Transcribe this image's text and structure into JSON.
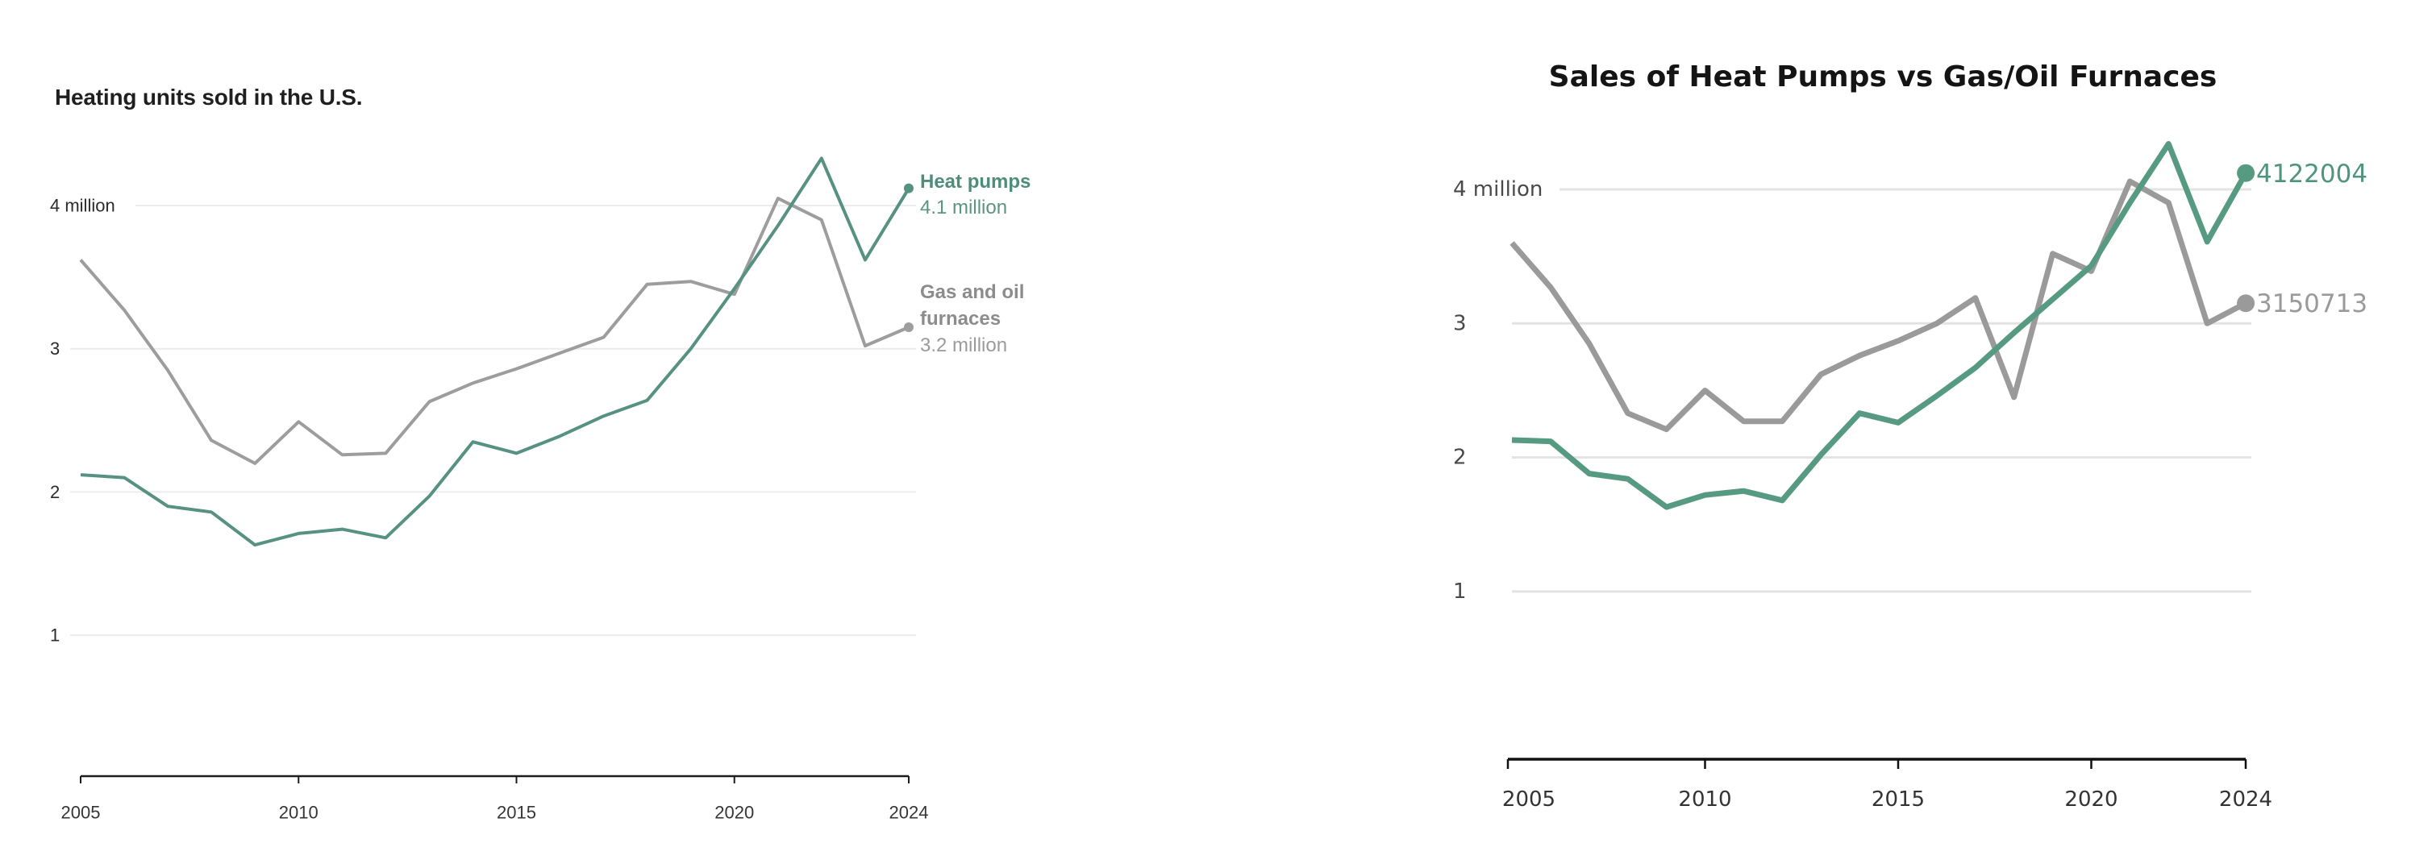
{
  "page": {
    "background": "#ffffff"
  },
  "chart_data": [
    {
      "id": "left-chart",
      "type": "line",
      "title": "Heating units sold in the U.S.",
      "x": [
        2005,
        2006,
        2007,
        2008,
        2009,
        2010,
        2011,
        2012,
        2013,
        2014,
        2015,
        2016,
        2017,
        2018,
        2019,
        2020,
        2021,
        2022,
        2023,
        2024
      ],
      "x_tick_labels": [
        "2005",
        "2010",
        "2015",
        "2020",
        "2024"
      ],
      "x_tick_values": [
        2005,
        2010,
        2015,
        2020,
        2024
      ],
      "y_ticks": [
        {
          "value": 4,
          "label": "4 million"
        },
        {
          "value": 3,
          "label": "3"
        },
        {
          "value": 2,
          "label": "2"
        },
        {
          "value": 1,
          "label": "1"
        }
      ],
      "ylim": [
        0,
        4.6
      ],
      "grid": "horizontal",
      "legend_position": "right-of-line-ends",
      "series": [
        {
          "key": "heat-pumps",
          "name": "Heat pumps",
          "legend_lines": [
            "Heat pumps"
          ],
          "end_value_label": "4.1 million",
          "color": "#569181",
          "values": [
            2.12,
            2.1,
            1.9,
            1.86,
            1.63,
            1.71,
            1.74,
            1.68,
            1.97,
            2.35,
            2.27,
            2.39,
            2.53,
            2.64,
            3.0,
            3.42,
            3.86,
            4.33,
            3.62,
            4.12
          ]
        },
        {
          "key": "furnaces",
          "name": "Gas and oil furnaces",
          "legend_lines": [
            "Gas and oil",
            "furnaces"
          ],
          "end_value_label": "3.2 million",
          "color": "#9d9d9d",
          "values": [
            3.62,
            3.27,
            2.85,
            2.36,
            2.2,
            2.49,
            2.26,
            2.27,
            2.63,
            2.76,
            2.86,
            2.97,
            3.08,
            3.45,
            3.47,
            3.38,
            4.05,
            3.9,
            3.02,
            3.15
          ]
        }
      ]
    },
    {
      "id": "right-chart",
      "type": "line",
      "title": "Sales of Heat Pumps vs Gas/Oil Furnaces",
      "x": [
        2005,
        2006,
        2007,
        2008,
        2009,
        2010,
        2011,
        2012,
        2013,
        2014,
        2015,
        2016,
        2017,
        2018,
        2019,
        2020,
        2021,
        2022,
        2023,
        2024
      ],
      "x_tick_labels": [
        "2005",
        "2010",
        "2015",
        "2020",
        "2024"
      ],
      "x_tick_values": [
        2005,
        2010,
        2015,
        2020,
        2024
      ],
      "y_ticks": [
        {
          "value": 4,
          "label": "4 million"
        },
        {
          "value": 3,
          "label": "3"
        },
        {
          "value": 2,
          "label": "2"
        },
        {
          "value": 1,
          "label": "1"
        }
      ],
      "ylim": [
        -0.25,
        4.45
      ],
      "grid": "horizontal",
      "legend_position": "end-value-labels",
      "series": [
        {
          "key": "heat-pumps",
          "name": "Heat pumps",
          "end_value_label": "4122004",
          "color": "#579a82",
          "values": [
            2.13,
            2.12,
            1.88,
            1.84,
            1.63,
            1.72,
            1.75,
            1.68,
            2.02,
            2.33,
            2.26,
            2.46,
            2.67,
            2.93,
            3.18,
            3.43,
            3.9,
            4.34,
            3.61,
            4.122004
          ]
        },
        {
          "key": "furnaces",
          "name": "Gas/Oil Furnaces",
          "end_value_label": "3150713",
          "color": "#9a9a9a",
          "values": [
            3.6,
            3.27,
            2.85,
            2.33,
            2.21,
            2.5,
            2.27,
            2.27,
            2.62,
            2.76,
            2.87,
            3.0,
            3.19,
            2.45,
            3.52,
            3.39,
            4.06,
            3.9,
            3.0,
            3.150713
          ]
        }
      ]
    }
  ]
}
